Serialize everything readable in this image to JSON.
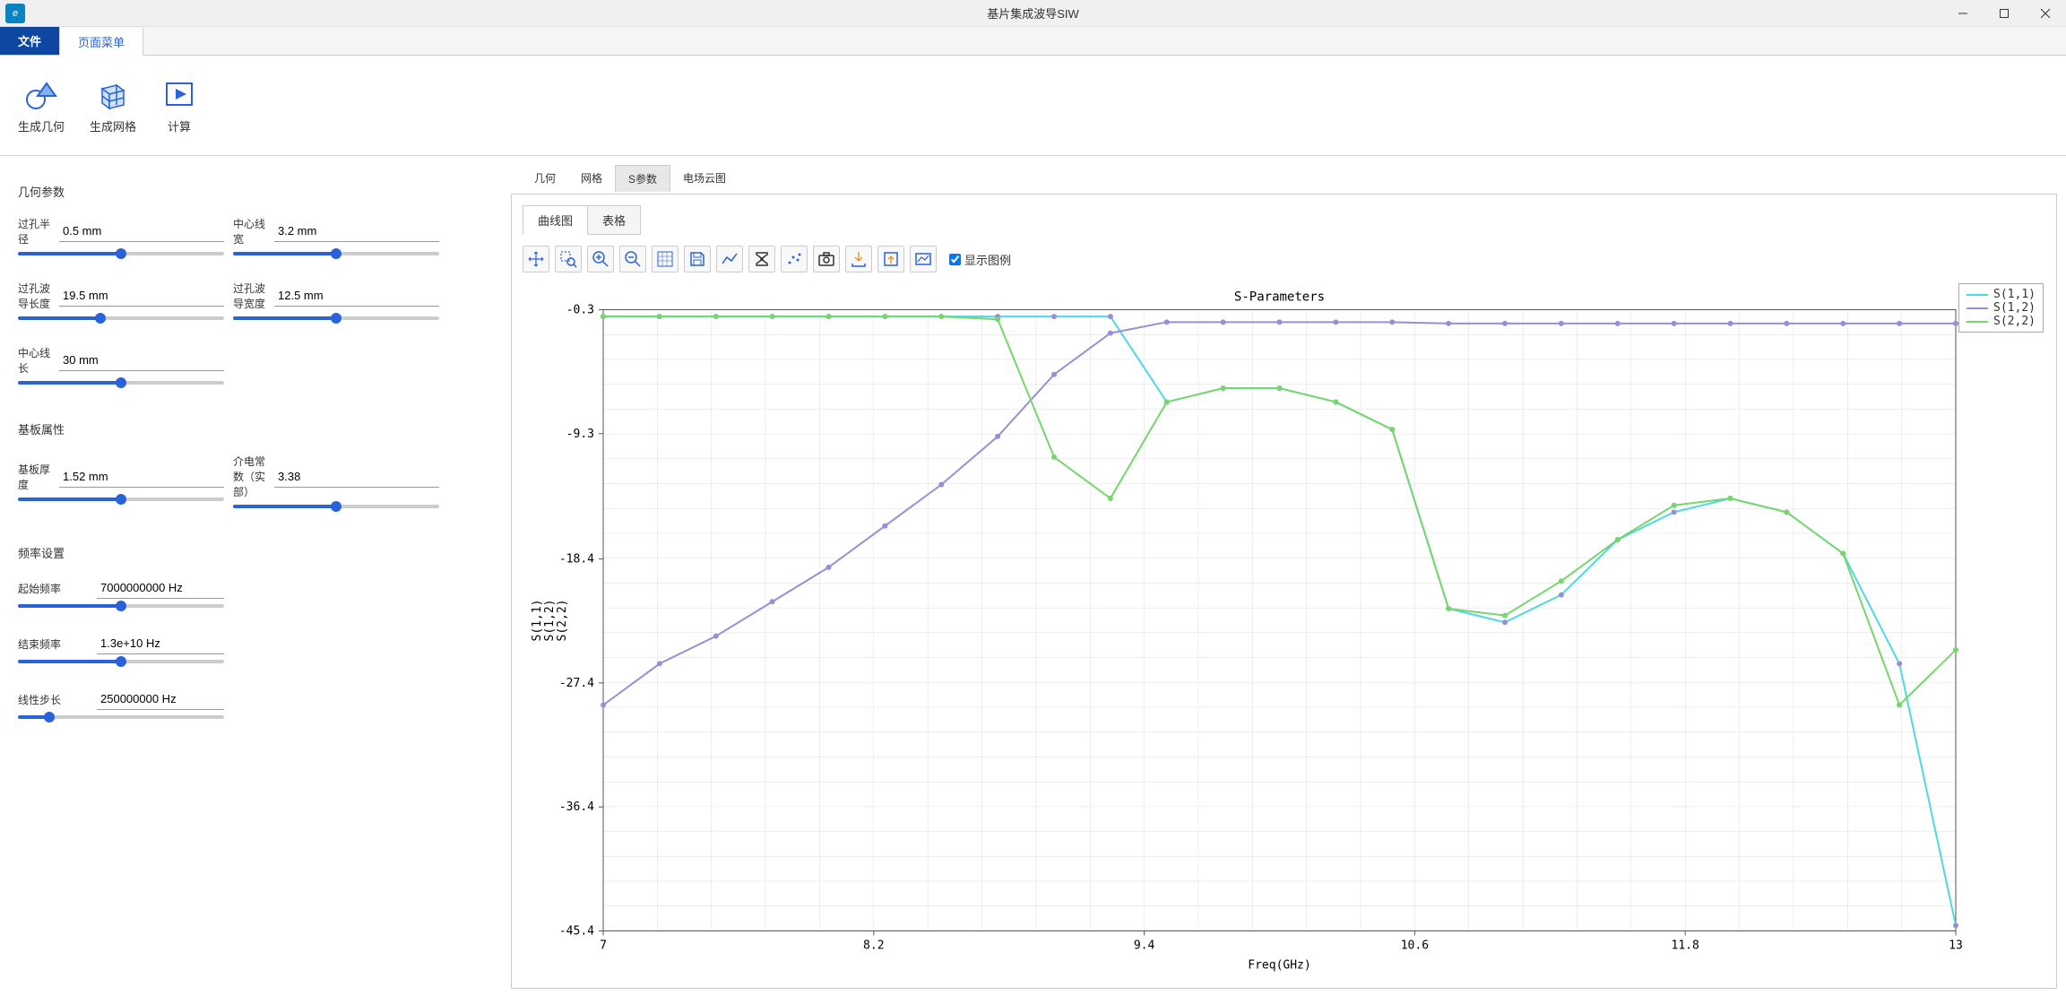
{
  "window": {
    "title": "基片集成波导SIW",
    "app_icon_letter": "e"
  },
  "menu": {
    "file": "文件",
    "page_menu": "页面菜单"
  },
  "ribbon": {
    "gen_geometry": "生成几何",
    "gen_mesh": "生成网格",
    "compute": "计算"
  },
  "sidebar": {
    "geom_section": "几何参数",
    "substrate_section": "基板属性",
    "freq_section": "频率设置",
    "params": {
      "via_radius": {
        "label": "过孔半径",
        "value": "0.5 mm",
        "pct": 50
      },
      "center_width": {
        "label": "中心线宽",
        "value": "3.2 mm",
        "pct": 50
      },
      "via_wg_length": {
        "label": "过孔波导长度",
        "value": "19.5 mm",
        "pct": 40
      },
      "via_wg_width": {
        "label": "过孔波导宽度",
        "value": "12.5 mm",
        "pct": 50
      },
      "center_length": {
        "label": "中心线长",
        "value": "30 mm",
        "pct": 50
      },
      "substrate_thick": {
        "label": "基板厚度",
        "value": "1.52 mm",
        "pct": 50
      },
      "permittivity": {
        "label": "介电常数（实部）",
        "value": "3.38",
        "pct": 50
      },
      "start_freq": {
        "label": "起始频率",
        "value": "7000000000 Hz",
        "pct": 50
      },
      "end_freq": {
        "label": "结束频率",
        "value": "1.3e+10 Hz",
        "pct": 50
      },
      "step": {
        "label": "线性步长",
        "value": "250000000 Hz",
        "pct": 15
      }
    }
  },
  "view_tabs": {
    "geometry": "几何",
    "mesh": "网格",
    "s_params": "S参数",
    "efield": "电场云图"
  },
  "chart": {
    "subtab_curve": "曲线图",
    "subtab_table": "表格",
    "show_legend": "显示图例",
    "title": "S-Parameters",
    "xlabel": "Freq(GHz)",
    "ylabel_lines": [
      "S(1,1)",
      "S(1,2)",
      "S(2,2)"
    ],
    "xmin": 7,
    "xmax": 13,
    "ymin": -45.4,
    "ymax": -0.3,
    "xticks": [
      7,
      8.2,
      9.4,
      10.6,
      11.8,
      13
    ],
    "yticks": [
      -0.3,
      -9.3,
      -18.4,
      -27.4,
      -36.4,
      -45.4
    ],
    "grid_color": "#dddddd",
    "axis_color": "#555555",
    "series": [
      {
        "name": "S(1,1)",
        "color": "#4dd8e6",
        "marker_color": "#9c8cd8",
        "x": [
          7,
          7.25,
          7.5,
          7.75,
          8,
          8.25,
          8.5,
          8.75,
          9,
          9.25,
          9.5,
          9.75,
          10,
          10.25,
          10.5,
          10.75,
          11,
          11.25,
          11.5,
          11.75,
          12,
          12.25,
          12.5,
          12.75,
          13
        ],
        "y": [
          -0.8,
          -0.8,
          -0.8,
          -0.8,
          -0.8,
          -0.8,
          -0.8,
          -0.8,
          -0.8,
          -0.8,
          -7,
          -6,
          -6,
          -7,
          -9,
          -22,
          -23,
          -21,
          -17,
          -15,
          -14,
          -15,
          -18,
          -26,
          -45
        ]
      },
      {
        "name": "S(1,2)",
        "color": "#9c8cd8",
        "marker_color": "#9c8cd8",
        "x": [
          7,
          7.25,
          7.5,
          7.75,
          8,
          8.25,
          8.5,
          8.75,
          9,
          9.25,
          9.5,
          9.75,
          10,
          10.25,
          10.5,
          10.75,
          11,
          11.25,
          11.5,
          11.75,
          12,
          12.25,
          12.5,
          12.75,
          13
        ],
        "y": [
          -29,
          -26,
          -24,
          -21.5,
          -19,
          -16,
          -13,
          -9.5,
          -5,
          -2,
          -1.2,
          -1.2,
          -1.2,
          -1.2,
          -1.2,
          -1.3,
          -1.3,
          -1.3,
          -1.3,
          -1.3,
          -1.3,
          -1.3,
          -1.3,
          -1.3,
          -1.3
        ]
      },
      {
        "name": "S(2,2)",
        "color": "#74d66b",
        "marker_color": "#74d66b",
        "x": [
          7,
          7.25,
          7.5,
          7.75,
          8,
          8.25,
          8.5,
          8.75,
          9,
          9.25,
          9.5,
          9.75,
          10,
          10.25,
          10.5,
          10.75,
          11,
          11.25,
          11.5,
          11.75,
          12,
          12.25,
          12.5,
          12.75,
          13
        ],
        "y": [
          -0.8,
          -0.8,
          -0.8,
          -0.8,
          -0.8,
          -0.8,
          -0.8,
          -1,
          -11,
          -14,
          -7,
          -6,
          -6,
          -7,
          -9,
          -22,
          -22.5,
          -20,
          -17,
          -14.5,
          -14,
          -15,
          -18,
          -29,
          -25
        ]
      }
    ]
  }
}
